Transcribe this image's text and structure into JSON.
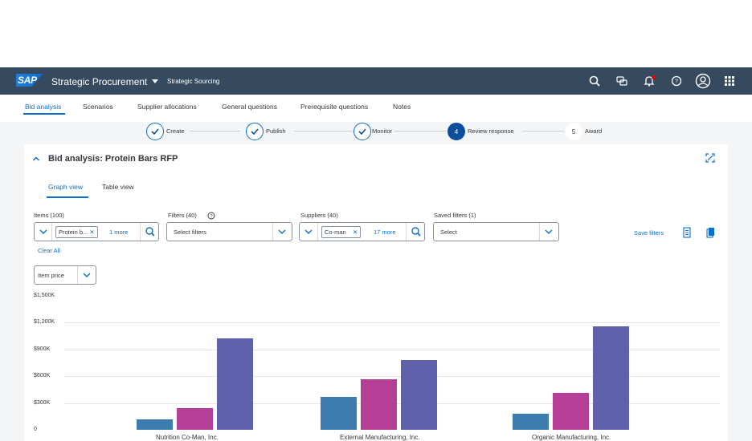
{
  "shell": {
    "logo": "SAP",
    "title": "Strategic Procurement",
    "subtitle": "Strategic Sourcing"
  },
  "tabs": [
    {
      "label": "Bid analysis"
    },
    {
      "label": "Scenarios"
    },
    {
      "label": "Supplier allocations"
    },
    {
      "label": "General questions"
    },
    {
      "label": "Prerequisite questions"
    },
    {
      "label": "Notes"
    }
  ],
  "steps": [
    {
      "label": "Create",
      "state": "done"
    },
    {
      "label": "Publish",
      "state": "done"
    },
    {
      "label": "Monitor",
      "state": "done"
    },
    {
      "label": "Review response",
      "number": "4",
      "state": "active"
    },
    {
      "label": "Award",
      "number": "5",
      "state": "pending"
    }
  ],
  "panel": {
    "title": "Bid analysis: Protein Bars RFP",
    "view_tabs": [
      "Graph view",
      "Table view"
    ]
  },
  "filters": {
    "items": {
      "label": "Items (100)",
      "token": "Protein b...",
      "more": "1 more"
    },
    "filters": {
      "label": "Filters (40)",
      "placeholder": "Select filters"
    },
    "suppliers": {
      "label": "Suppliers (40)",
      "token": "Co-man",
      "more": "17 more"
    },
    "saved": {
      "label": "Saved filters (1)",
      "placeholder": "Select"
    },
    "save_filters": "Save filters",
    "clear_all": "Clear All",
    "metric": "Item price"
  },
  "colors": {
    "shell": "#354a5f",
    "accent": "#0a6ed1",
    "series1": "#3d7cae",
    "series2": "#b53e97",
    "series3": "#6061ad"
  },
  "chart_data": {
    "type": "bar",
    "categories": [
      "Nutrition Co-Man, Inc.",
      "External Manufacturing, Inc.",
      "Organic Manufacturing, Inc."
    ],
    "series": [
      {
        "values": [
          120,
          370,
          180
        ]
      },
      {
        "values": [
          240,
          570,
          410
        ]
      },
      {
        "values": [
          1020,
          780,
          1160
        ]
      }
    ],
    "ytick_labels": [
      "$1,500K",
      "$1,200K",
      "$900K",
      "$600K",
      "$300K",
      "0"
    ],
    "ylim": [
      0,
      1500
    ],
    "grid": true
  }
}
